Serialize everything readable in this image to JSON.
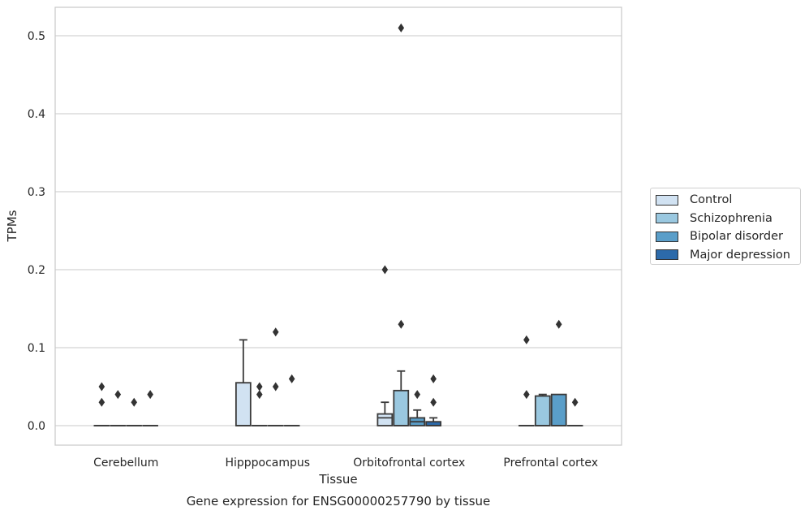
{
  "chart_data": {
    "type": "box",
    "title": "Gene expression for ENSG00000257790 by tissue",
    "xlabel": "Tissue",
    "ylabel": "TPMs",
    "categories": [
      "Cerebellum",
      "Hipppocampus",
      "Orbitofrontal cortex",
      "Prefrontal cortex"
    ],
    "ylim": [
      -0.025,
      0.535
    ],
    "yticks": [
      "0.0",
      "0.1",
      "0.2",
      "0.3",
      "0.4",
      "0.5"
    ],
    "grid": true,
    "legend_position": "right",
    "series": [
      {
        "name": "Control",
        "color": "#d1e2f2",
        "boxes": [
          {
            "q1": 0.0,
            "median": 0.0,
            "q3": 0.0,
            "whisker_low": 0.0,
            "whisker_high": 0.0,
            "outliers": [
              0.05,
              0.03
            ]
          },
          {
            "q1": 0.0,
            "median": 0.0,
            "q3": 0.055,
            "whisker_low": 0.0,
            "whisker_high": 0.11,
            "outliers": []
          },
          {
            "q1": 0.0,
            "median": 0.01,
            "q3": 0.015,
            "whisker_low": 0.0,
            "whisker_high": 0.03,
            "outliers": [
              0.2
            ]
          },
          {
            "q1": 0.0,
            "median": 0.0,
            "q3": 0.0,
            "whisker_low": 0.0,
            "whisker_high": 0.0,
            "outliers": [
              0.11,
              0.04
            ]
          }
        ]
      },
      {
        "name": "Schizophrenia",
        "color": "#9ac8e0",
        "boxes": [
          {
            "q1": 0.0,
            "median": 0.0,
            "q3": 0.0,
            "whisker_low": 0.0,
            "whisker_high": 0.0,
            "outliers": [
              0.04
            ]
          },
          {
            "q1": 0.0,
            "median": 0.0,
            "q3": 0.0,
            "whisker_low": 0.0,
            "whisker_high": 0.0,
            "outliers": [
              0.05,
              0.04
            ]
          },
          {
            "q1": 0.0,
            "median": 0.0,
            "q3": 0.045,
            "whisker_low": 0.0,
            "whisker_high": 0.07,
            "outliers": [
              0.51,
              0.13
            ]
          },
          {
            "q1": 0.0,
            "median": 0.0,
            "q3": 0.038,
            "whisker_low": 0.0,
            "whisker_high": 0.04,
            "outliers": []
          }
        ]
      },
      {
        "name": "Bipolar disorder",
        "color": "#5a9ec9",
        "boxes": [
          {
            "q1": 0.0,
            "median": 0.0,
            "q3": 0.0,
            "whisker_low": 0.0,
            "whisker_high": 0.0,
            "outliers": [
              0.03
            ]
          },
          {
            "q1": 0.0,
            "median": 0.0,
            "q3": 0.0,
            "whisker_low": 0.0,
            "whisker_high": 0.0,
            "outliers": [
              0.12,
              0.05
            ]
          },
          {
            "q1": 0.0,
            "median": 0.005,
            "q3": 0.01,
            "whisker_low": 0.0,
            "whisker_high": 0.02,
            "outliers": [
              0.04
            ]
          },
          {
            "q1": 0.0,
            "median": 0.0,
            "q3": 0.04,
            "whisker_low": 0.0,
            "whisker_high": 0.04,
            "outliers": [
              0.13
            ]
          }
        ]
      },
      {
        "name": "Major depression",
        "color": "#2c6aaa",
        "boxes": [
          {
            "q1": 0.0,
            "median": 0.0,
            "q3": 0.0,
            "whisker_low": 0.0,
            "whisker_high": 0.0,
            "outliers": [
              0.04
            ]
          },
          {
            "q1": 0.0,
            "median": 0.0,
            "q3": 0.0,
            "whisker_low": 0.0,
            "whisker_high": 0.0,
            "outliers": [
              0.06
            ]
          },
          {
            "q1": 0.0,
            "median": 0.0,
            "q3": 0.005,
            "whisker_low": 0.0,
            "whisker_high": 0.01,
            "outliers": [
              0.06,
              0.03
            ]
          },
          {
            "q1": 0.0,
            "median": 0.0,
            "q3": 0.0,
            "whisker_low": 0.0,
            "whisker_high": 0.0,
            "outliers": [
              0.03
            ]
          }
        ]
      }
    ]
  }
}
